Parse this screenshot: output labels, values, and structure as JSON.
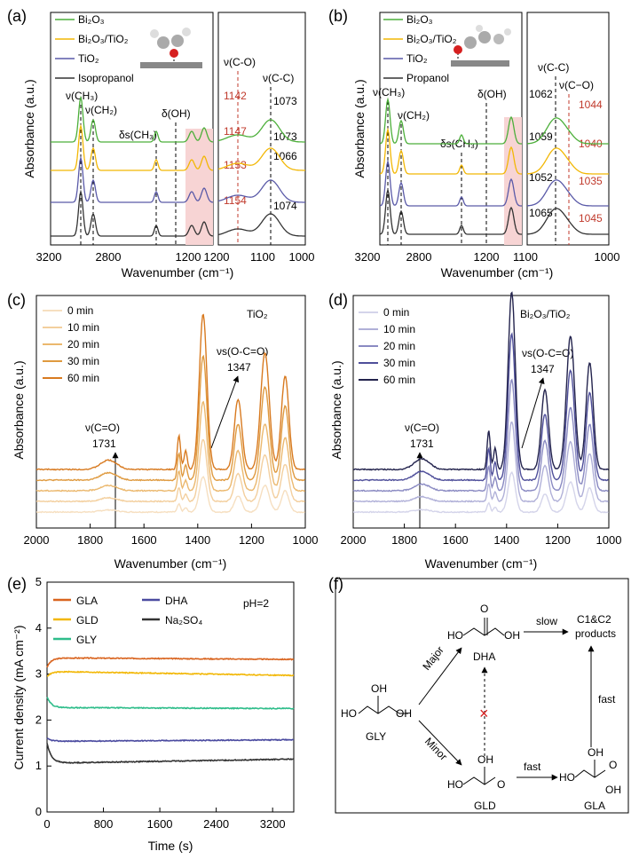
{
  "chart_data": [
    {
      "panel": "(a)",
      "type": "line",
      "xlabel": "Wavenumber (cm⁻¹)",
      "ylabel": "Absorbance (a.u.)",
      "xticks_left": [
        "3200",
        "2800",
        "1200"
      ],
      "xticks_right": [
        "1200",
        "1100",
        "1000"
      ],
      "legend": [
        {
          "name": "Bi₂O₃",
          "color": "#4caf3a"
        },
        {
          "name": "Bi₂O₃/TiO₂",
          "color": "#f2b705"
        },
        {
          "name": "TiO₂",
          "color": "#5a5aa8"
        },
        {
          "name": "Isopropanol",
          "color": "#333333"
        }
      ],
      "annotations": [
        "ν(CH₃)",
        "ν(CH₂)",
        "δs(CH₃)",
        "δ(OH)",
        "ν(C-O)",
        "ν(C-C)"
      ],
      "co_peaks": [
        "1142",
        "1147",
        "1153",
        "1154"
      ],
      "cc_peaks": [
        "1073",
        "1073",
        "1066",
        "1074"
      ]
    },
    {
      "panel": "(b)",
      "type": "line",
      "xlabel": "Wavenumber (cm⁻¹)",
      "ylabel": "Absorbance (a.u.)",
      "xticks_left": [
        "3200",
        "2800",
        "1200"
      ],
      "xticks_right": [
        "1100",
        "1000"
      ],
      "legend": [
        {
          "name": "Bi₂O₃",
          "color": "#4caf3a"
        },
        {
          "name": "Bi₂O₃/TiO₂",
          "color": "#f2b705"
        },
        {
          "name": "TiO₂",
          "color": "#5a5aa8"
        },
        {
          "name": "Propanol",
          "color": "#333333"
        }
      ],
      "annotations": [
        "ν(CH₃)",
        "ν(CH₂)",
        "δs(CH₃)",
        "δ(OH)",
        "ν(C-C)",
        "ν(C−O)"
      ],
      "cc_peaks": [
        "1062",
        "1059",
        "1052",
        "1065"
      ],
      "co_peaks": [
        "1044",
        "1040",
        "1035",
        "1045"
      ]
    },
    {
      "panel": "(c)",
      "type": "line",
      "title": "TiO₂",
      "xlabel": "Wavenumber (cm⁻¹)",
      "ylabel": "Absorbance (a.u.)",
      "xlim": [
        2000,
        1000
      ],
      "xticks": [
        "2000",
        "1800",
        "1600",
        "1400",
        "1200",
        "1000"
      ],
      "legend": [
        {
          "name": "0 min",
          "color": "#f6dfc0"
        },
        {
          "name": "10 min",
          "color": "#f3cf9e"
        },
        {
          "name": "20 min",
          "color": "#ebb86e"
        },
        {
          "name": "30 min",
          "color": "#df9a3f"
        },
        {
          "name": "60 min",
          "color": "#d87a20"
        }
      ],
      "annotations": [
        "ν(C=O)",
        "1731",
        "νs(O-C=O)",
        "1347"
      ]
    },
    {
      "panel": "(d)",
      "type": "line",
      "title": "Bi₂O₃/TiO₂",
      "xlabel": "Wavenumber (cm⁻¹)",
      "ylabel": "Absorbance (a.u.)",
      "xlim": [
        2000,
        1000
      ],
      "xticks": [
        "2000",
        "1800",
        "1600",
        "1400",
        "1200",
        "1000"
      ],
      "legend": [
        {
          "name": "0 min",
          "color": "#d4d4ea"
        },
        {
          "name": "10 min",
          "color": "#b0b0d8"
        },
        {
          "name": "20 min",
          "color": "#8a8ac2"
        },
        {
          "name": "30 min",
          "color": "#4f4f9a"
        },
        {
          "name": "60 min",
          "color": "#23234d"
        }
      ],
      "annotations": [
        "ν(C=O)",
        "1731",
        "νs(O-C=O)",
        "1347"
      ]
    },
    {
      "panel": "(e)",
      "type": "line",
      "xlabel": "Time (s)",
      "ylabel": "Current density (mA cm⁻²)",
      "xlim": [
        0,
        3500
      ],
      "ylim": [
        0,
        5
      ],
      "xticks": [
        "0",
        "800",
        "1600",
        "2400",
        "3200"
      ],
      "yticks": [
        "0",
        "1",
        "2",
        "3",
        "4",
        "5"
      ],
      "condition": "pH=2",
      "series": [
        {
          "name": "GLA",
          "color": "#d9641f",
          "start": 3.15,
          "plateau": 3.35,
          "end": 3.32
        },
        {
          "name": "GLD",
          "color": "#f2b705",
          "start": 2.95,
          "plateau": 3.05,
          "end": 2.97
        },
        {
          "name": "GLY",
          "color": "#2ebd8a",
          "start": 2.5,
          "plateau": 2.27,
          "end": 2.25
        },
        {
          "name": "DHA",
          "color": "#4b4ba0",
          "start": 1.6,
          "plateau": 1.54,
          "end": 1.57
        },
        {
          "name": "Na₂SO₄",
          "color": "#333333",
          "start": 1.5,
          "plateau": 1.07,
          "end": 1.15
        }
      ]
    }
  ],
  "scheme": {
    "panel": "(f)",
    "molecules": {
      "gly": "GLY",
      "dha": "DHA",
      "gld": "GLD",
      "gla": "GLA",
      "c1c2": "C1&C2",
      "products": "products"
    },
    "atoms": {
      "ho": "HO",
      "oh": "OH",
      "o": "O",
      "h": "H"
    },
    "arrows": {
      "major": "Major",
      "minor": "Minor",
      "slow": "slow",
      "fast1": "fast",
      "fast2": "fast"
    },
    "blocked": "×"
  }
}
